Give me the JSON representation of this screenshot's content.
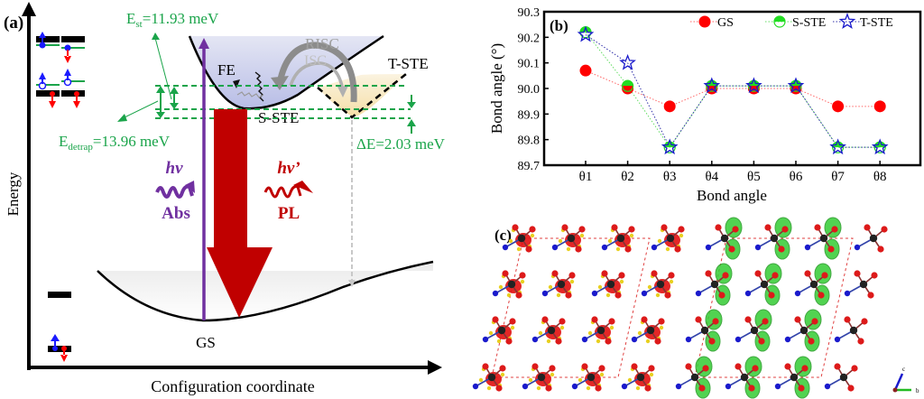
{
  "panel_a": {
    "label": "(a)",
    "y_axis_label": "Energy",
    "x_axis_label": "Configuration coordinate",
    "states": {
      "fe": "FE",
      "s_ste": "S-STE",
      "t_ste": "T-STE",
      "gs": "GS"
    },
    "processes": {
      "risc": "RISC",
      "isc": "ISC"
    },
    "energies": {
      "est_main": "E",
      "est_sub": "st",
      "est_value": "=11.93 meV",
      "edetrap_main": "E",
      "edetrap_sub": "detrap",
      "edetrap_value": "=13.96 meV",
      "delta_e": "ΔE=2.03 meV"
    },
    "absorption": {
      "photon": "hv",
      "label": "Abs"
    },
    "emission": {
      "photon": "hv’",
      "label": "PL"
    },
    "colors": {
      "green": "#1aa44a",
      "purple": "#7030a0",
      "red": "#c00000",
      "blue": "#1a1aff",
      "spin_red": "#ff0000"
    }
  },
  "panel_b": {
    "label": "(b)"
  },
  "panel_c": {
    "label": "(c)",
    "axis_c": "c",
    "axis_b": "b"
  },
  "chart_data": {
    "type": "scatter",
    "title": "",
    "xlabel": "Bond angle",
    "ylabel": "Bond angle (°)",
    "categories": [
      "θ1",
      "θ2",
      "θ3",
      "θ4",
      "θ5",
      "θ6",
      "θ7",
      "θ8"
    ],
    "ylim": [
      89.7,
      90.3
    ],
    "yticks": [
      "89.7",
      "89.8",
      "89.9",
      "90.0",
      "90.1",
      "90.2",
      "90.3"
    ],
    "legend_position": "top-right",
    "grid": false,
    "series": [
      {
        "name": "GS",
        "marker": "filled-circle",
        "color": "#ff0000",
        "values": [
          90.07,
          90.0,
          89.93,
          90.0,
          90.0,
          90.0,
          89.93,
          89.93
        ]
      },
      {
        "name": "S-STE",
        "marker": "half-filled-circle",
        "color": "#22dd22",
        "values": [
          90.22,
          90.01,
          89.77,
          90.01,
          90.01,
          90.01,
          89.77,
          89.77
        ]
      },
      {
        "name": "T-STE",
        "marker": "open-star",
        "color": "#1a1acc",
        "values": [
          90.21,
          90.1,
          89.77,
          90.01,
          90.01,
          90.01,
          89.77,
          89.77
        ]
      }
    ]
  }
}
